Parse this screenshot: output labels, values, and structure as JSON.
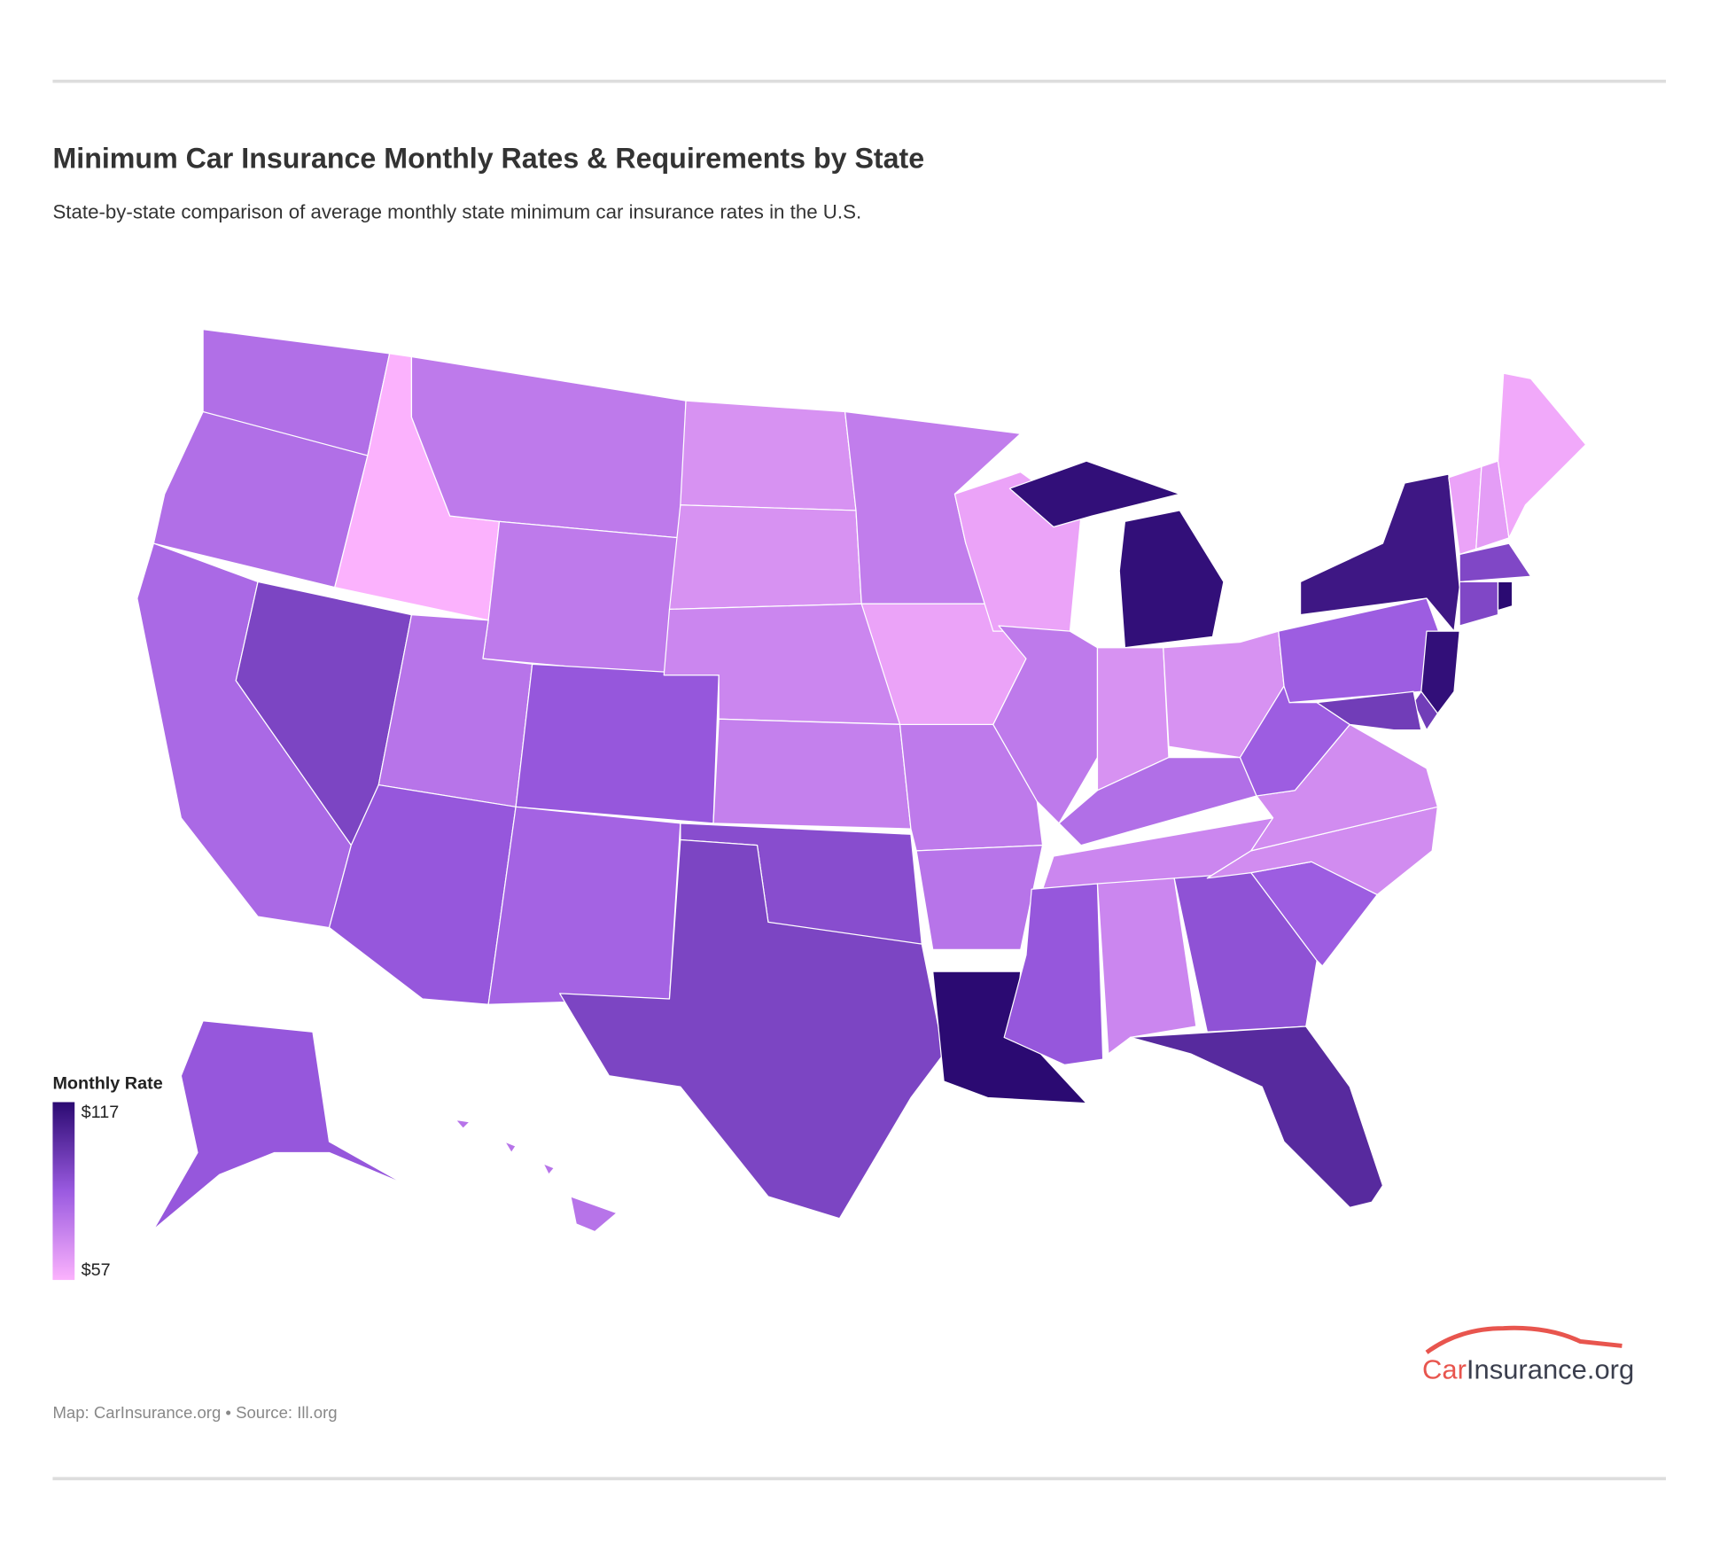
{
  "header": {
    "title": "Minimum Car Insurance Monthly Rates & Requirements by State",
    "subtitle": "State-by-state comparison of average monthly state minimum car insurance rates in the U.S."
  },
  "chart_data": {
    "type": "choropleth",
    "values": [
      80,
      80,
      82,
      95,
      57,
      76,
      76,
      78,
      88,
      88,
      84,
      68,
      68,
      72,
      74,
      92,
      95,
      75,
      62,
      76,
      78,
      117,
      62,
      76,
      115,
      68,
      68,
      80,
      72,
      88,
      72,
      90,
      105,
      86,
      70,
      70,
      86,
      86,
      112,
      62,
      64,
      60,
      94,
      94,
      117,
      115,
      98,
      98,
      88,
      78
    ],
    "colorscale": {
      "title": "Monthly Rate",
      "max": {
        "value": 117,
        "label": "$117"
      },
      "min": {
        "value": 57,
        "label": "$57"
      },
      "colors": [
        "#fbb2fd",
        "#9a5ae0",
        "#2b0a72"
      ]
    }
  },
  "footer": {
    "source": "Map: CarInsurance.org • Source: Ill.org",
    "logo": [
      "Car",
      "Insurance.org"
    ]
  }
}
